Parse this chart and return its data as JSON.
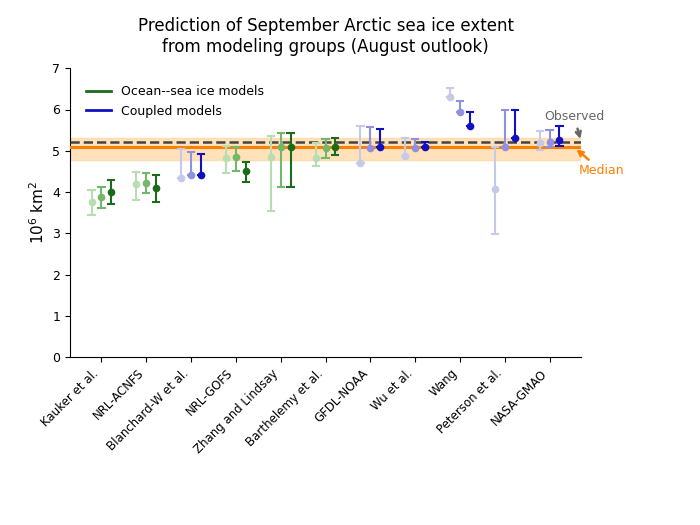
{
  "title": "Prediction of September Arctic sea ice extent\nfrom modeling groups (August outlook)",
  "ylabel": "$10^6$ km$^2$",
  "ylim": [
    0,
    7
  ],
  "yticks": [
    0,
    1,
    2,
    3,
    4,
    5,
    6,
    7
  ],
  "median_line": 5.08,
  "median_band_low": 4.78,
  "median_band_high": 5.3,
  "dashed_line": 5.22,
  "observed_val": 5.22,
  "groups": [
    "Kauker et al.",
    "NRL-ACNFS",
    "Blanchard-W et al.",
    "NRL-GOFS",
    "Zhang and Lindsay",
    "Barthelemy et al.",
    "GFDL-NOAA",
    "Wu et al.",
    "Wang",
    "Peterson et al.",
    "NASA-GMAO"
  ],
  "model_types": [
    "ocean",
    "ocean",
    "coupled",
    "ocean",
    "ocean",
    "ocean",
    "coupled",
    "coupled",
    "coupled",
    "coupled",
    "coupled"
  ],
  "triplets": {
    "Kauker et al.": {
      "centers": [
        3.75,
        3.88,
        4.0
      ],
      "lo": [
        3.45,
        3.62,
        3.72
      ],
      "hi": [
        4.05,
        4.13,
        4.28
      ]
    },
    "NRL-ACNFS": {
      "centers": [
        4.2,
        4.22,
        4.1
      ],
      "lo": [
        3.8,
        3.98,
        3.75
      ],
      "hi": [
        4.48,
        4.45,
        4.42
      ]
    },
    "Blanchard-W et al.": {
      "centers": [
        4.35,
        4.42,
        4.4
      ],
      "lo": [
        4.35,
        4.42,
        4.4
      ],
      "hi": [
        5.05,
        4.98,
        4.92
      ]
    },
    "NRL-GOFS": {
      "centers": [
        4.82,
        4.85,
        4.5
      ],
      "lo": [
        4.45,
        4.5,
        4.25
      ],
      "hi": [
        5.12,
        5.08,
        4.72
      ]
    },
    "Zhang and Lindsay": {
      "centers": [
        4.85,
        5.08,
        5.08
      ],
      "lo": [
        3.55,
        4.12,
        4.12
      ],
      "hi": [
        5.35,
        5.42,
        5.42
      ]
    },
    "Barthelemy et al.": {
      "centers": [
        4.82,
        5.07,
        5.08
      ],
      "lo": [
        4.62,
        4.82,
        4.9
      ],
      "hi": [
        5.2,
        5.28,
        5.32
      ]
    },
    "GFDL-NOAA": {
      "centers": [
        4.7,
        5.07,
        5.1
      ],
      "lo": [
        4.7,
        5.07,
        5.1
      ],
      "hi": [
        5.6,
        5.57,
        5.52
      ]
    },
    "Wu et al.": {
      "centers": [
        4.88,
        5.07,
        5.1
      ],
      "lo": [
        4.88,
        5.07,
        5.1
      ],
      "hi": [
        5.3,
        5.28,
        5.22
      ]
    },
    "Wang": {
      "centers": [
        6.3,
        5.95,
        5.6
      ],
      "lo": [
        6.3,
        5.95,
        5.6
      ],
      "hi": [
        6.52,
        6.2,
        5.95
      ]
    },
    "Peterson et al.": {
      "centers": [
        4.08,
        5.1,
        5.32
      ],
      "lo": [
        2.98,
        5.1,
        5.32
      ],
      "hi": [
        5.1,
        6.0,
        6.0
      ]
    },
    "NASA-GMAO": {
      "centers": [
        5.18,
        5.22,
        5.25
      ],
      "lo": [
        5.02,
        5.08,
        5.12
      ],
      "hi": [
        5.48,
        5.5,
        5.6
      ]
    }
  },
  "ocean_colors_3": [
    "#b8ddb0",
    "#72b86a",
    "#1a6b1a"
  ],
  "coupled_colors_3": [
    "#c5cae9",
    "#9090e0",
    "#1010c0"
  ],
  "observed_color": "#666666",
  "median_color": "#ff8000",
  "median_band_color": "#ffd090"
}
